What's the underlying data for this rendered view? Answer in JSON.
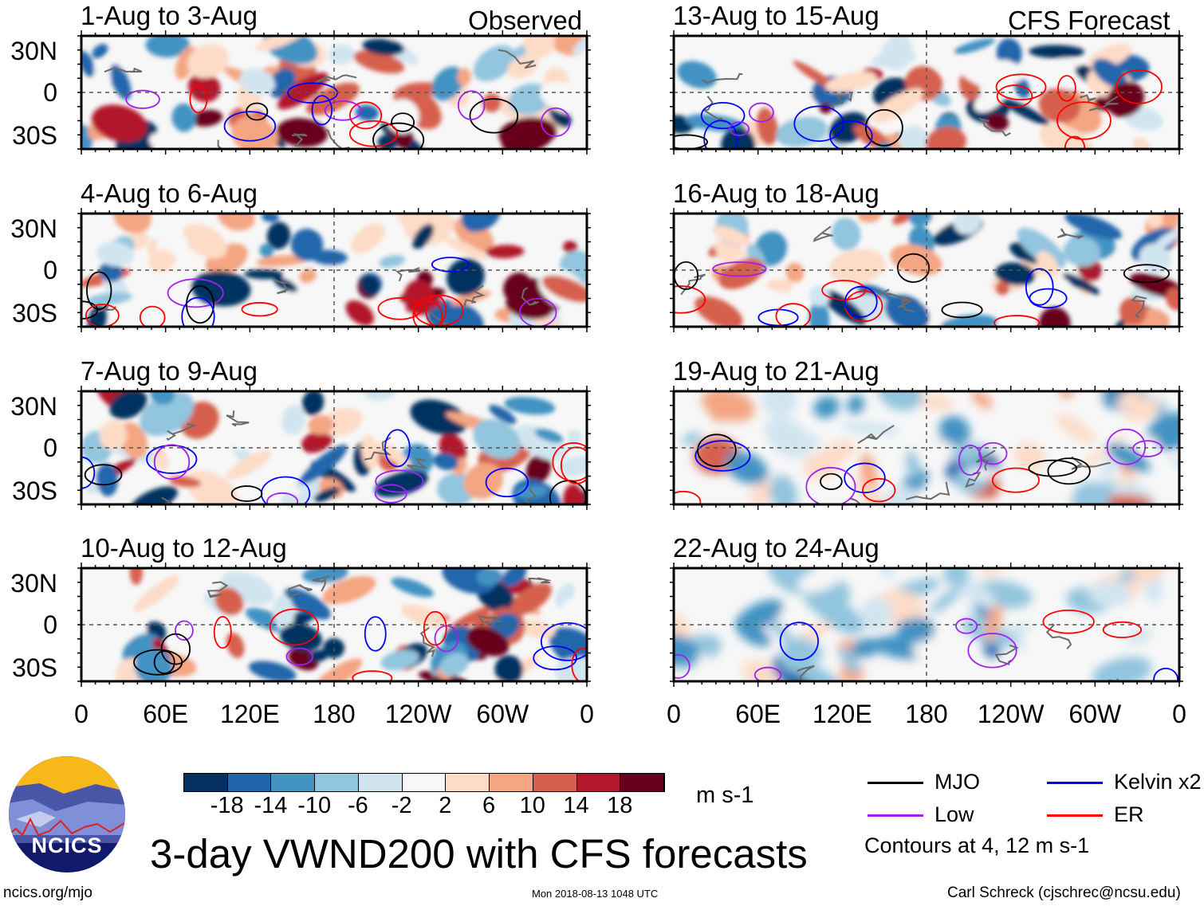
{
  "header": {
    "left_label": "Observed",
    "right_label": "CFS Forecast"
  },
  "panels": [
    {
      "title": "1-Aug to 3-Aug",
      "column": "observed"
    },
    {
      "title": "4-Aug to 6-Aug",
      "column": "observed"
    },
    {
      "title": "7-Aug to 9-Aug",
      "column": "observed"
    },
    {
      "title": "10-Aug to 12-Aug",
      "column": "observed"
    },
    {
      "title": "13-Aug to 15-Aug",
      "column": "forecast"
    },
    {
      "title": "16-Aug to 18-Aug",
      "column": "forecast"
    },
    {
      "title": "19-Aug to 21-Aug",
      "column": "forecast"
    },
    {
      "title": "22-Aug to 24-Aug",
      "column": "forecast"
    }
  ],
  "y_axis": {
    "labels": [
      "30N",
      "0",
      "30S"
    ]
  },
  "x_axis": {
    "labels": [
      "0",
      "60E",
      "120E",
      "180",
      "120W",
      "60W",
      "0"
    ]
  },
  "colorbar": {
    "colors": [
      "#053061",
      "#2166ac",
      "#4393c3",
      "#92c5de",
      "#d1e5f0",
      "#f7f7f7",
      "#fddbc7",
      "#f4a582",
      "#d6604d",
      "#b2182b",
      "#67001f"
    ],
    "labels": [
      "-18",
      "-14",
      "-10",
      "-6",
      "-2",
      "2",
      "6",
      "10",
      "14",
      "18"
    ],
    "units": "m s-1"
  },
  "legend": {
    "items": [
      {
        "label": "MJO",
        "color": "#000000"
      },
      {
        "label": "Kelvin x2",
        "color": "#0000ff"
      },
      {
        "label": "Low",
        "color": "#a020f0"
      },
      {
        "label": "ER",
        "color": "#ff0000"
      }
    ],
    "note": "Contours at 4, 12 m s-1"
  },
  "logo": {
    "text": "NCICS"
  },
  "title": "3-day VWND200 with CFS forecasts",
  "footer": {
    "url": "ncics.org/mjo",
    "timestamp": "Mon 2018-08-13 1048 UTC",
    "author": "Carl Schreck (cjschrec@ncsu.edu)"
  }
}
